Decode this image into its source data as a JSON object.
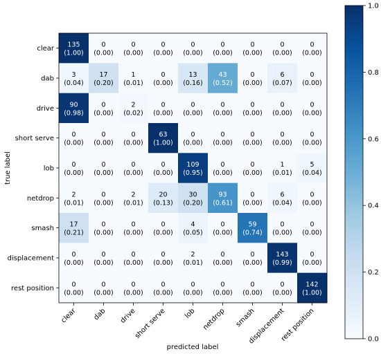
{
  "chart_data": {
    "type": "heatmap",
    "title": "",
    "xlabel": "predicted label",
    "ylabel": "true label",
    "labels": [
      "clear",
      "dab",
      "drive",
      "short serve",
      "lob",
      "netdrop",
      "smash",
      "displacement",
      "rest position"
    ],
    "counts": [
      [
        135,
        0,
        0,
        0,
        0,
        0,
        0,
        0,
        0
      ],
      [
        3,
        17,
        1,
        0,
        13,
        43,
        0,
        6,
        0
      ],
      [
        90,
        0,
        2,
        0,
        0,
        0,
        0,
        0,
        0
      ],
      [
        0,
        0,
        0,
        63,
        0,
        0,
        0,
        0,
        0
      ],
      [
        0,
        0,
        0,
        0,
        109,
        0,
        0,
        1,
        5
      ],
      [
        2,
        0,
        2,
        20,
        30,
        93,
        0,
        6,
        0
      ],
      [
        17,
        0,
        0,
        0,
        4,
        0,
        59,
        0,
        0
      ],
      [
        0,
        0,
        0,
        0,
        2,
        0,
        0,
        143,
        0
      ],
      [
        0,
        0,
        0,
        0,
        0,
        0,
        0,
        0,
        142
      ]
    ],
    "normalized": [
      [
        "(1.00)",
        "(0.00)",
        "(0.00)",
        "(0.00)",
        "(0.00)",
        "(0.00)",
        "(0.00)",
        "(0.00)",
        "(0.00)"
      ],
      [
        "(0.04)",
        "(0.20)",
        "(0.01)",
        "(0.00)",
        "(0.16)",
        "(0.52)",
        "(0.00)",
        "(0.07)",
        "(0.00)"
      ],
      [
        "(0.98)",
        "(0.00)",
        "(0.02)",
        "(0.00)",
        "(0.00)",
        "(0.00)",
        "(0.00)",
        "(0.00)",
        "(0.00)"
      ],
      [
        "(0.00)",
        "(0.00)",
        "(0.00)",
        "(1.00)",
        "(0.00)",
        "(0.00)",
        "(0.00)",
        "(0.00)",
        "(0.00)"
      ],
      [
        "(0.00)",
        "(0.00)",
        "(0.00)",
        "(0.00)",
        "(0.95)",
        "(0.00)",
        "(0.00)",
        "(0.01)",
        "(0.04)"
      ],
      [
        "(0.01)",
        "(0.00)",
        "(0.01)",
        "(0.13)",
        "(0.20)",
        "(0.61)",
        "(0.00)",
        "(0.04)",
        "(0.00)"
      ],
      [
        "(0.21)",
        "(0.00)",
        "(0.00)",
        "(0.00)",
        "(0.05)",
        "(0.00)",
        "(0.74)",
        "(0.00)",
        "(0.00)"
      ],
      [
        "(0.00)",
        "(0.00)",
        "(0.00)",
        "(0.00)",
        "(0.01)",
        "(0.00)",
        "(0.00)",
        "(0.99)",
        "(0.00)"
      ],
      [
        "(0.00)",
        "(0.00)",
        "(0.00)",
        "(0.00)",
        "(0.00)",
        "(0.00)",
        "(0.00)",
        "(0.00)",
        "(1.00)"
      ]
    ],
    "colorbar": {
      "range": [
        0.0,
        1.0
      ],
      "ticks": [
        "0.0",
        "0.2",
        "0.4",
        "0.6",
        "0.8",
        "1.0"
      ]
    },
    "colormap": "Blues",
    "colors": {
      "low": "#f7fbff",
      "high": "#08306b"
    }
  }
}
